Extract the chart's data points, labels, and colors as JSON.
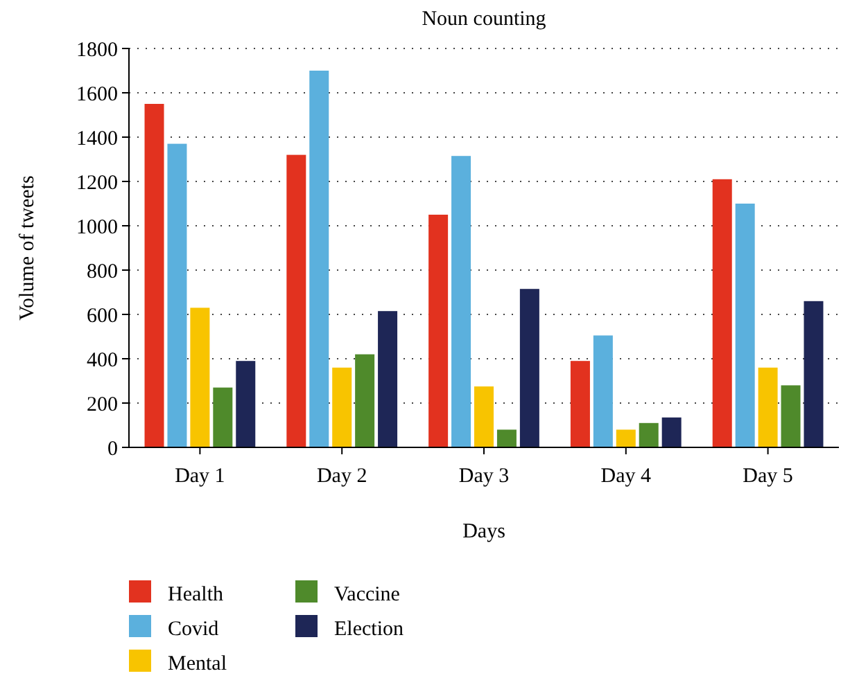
{
  "chart_data": {
    "type": "bar",
    "title": "Noun counting",
    "xlabel": "Days",
    "ylabel": "Volume of tweets",
    "categories": [
      "Day 1",
      "Day 2",
      "Day 3",
      "Day 4",
      "Day 5"
    ],
    "series": [
      {
        "name": "Health",
        "color": "#e2321f",
        "values": [
          1550,
          1320,
          1050,
          390,
          1210
        ]
      },
      {
        "name": "Covid",
        "color": "#5bb0dd",
        "values": [
          1370,
          1700,
          1315,
          505,
          1100
        ]
      },
      {
        "name": "Mental",
        "color": "#f8c400",
        "values": [
          630,
          360,
          275,
          80,
          360
        ]
      },
      {
        "name": "Vaccine",
        "color": "#4f8a2b",
        "values": [
          270,
          420,
          80,
          110,
          280
        ]
      },
      {
        "name": "Election",
        "color": "#1e2656",
        "values": [
          390,
          615,
          715,
          135,
          660
        ]
      }
    ],
    "ylim": [
      0,
      1800
    ],
    "yticks": [
      0,
      200,
      400,
      600,
      800,
      1000,
      1200,
      1400,
      1600,
      1800
    ],
    "grid": "y",
    "legend": "bottom"
  }
}
